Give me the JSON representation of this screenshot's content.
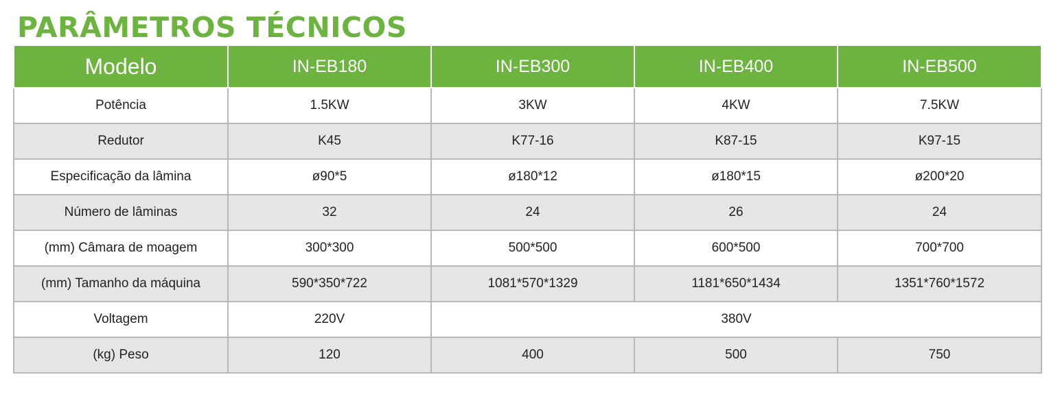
{
  "title": "PARÂMETROS TÉCNICOS",
  "colors": {
    "accent": "#6db33f",
    "row_alt": "#e6e6e6"
  },
  "header": [
    "Modelo",
    "IN-EB180",
    "IN-EB300",
    "IN-EB400",
    "IN-EB500"
  ],
  "rows": [
    {
      "label": "Potência",
      "values": [
        "1.5KW",
        "3KW",
        "4KW",
        "7.5KW"
      ]
    },
    {
      "label": "Redutor",
      "values": [
        "K45",
        "K77-16",
        "K87-15",
        "K97-15"
      ]
    },
    {
      "label": "Especificação da lâmina",
      "values": [
        "ø90*5",
        "ø180*12",
        "ø180*15",
        "ø200*20"
      ]
    },
    {
      "label": "Número de lâminas",
      "values": [
        "32",
        "24",
        "26",
        "24"
      ]
    },
    {
      "label": "(mm) Câmara de moagem",
      "values": [
        "300*300",
        "500*500",
        "600*500",
        "700*700"
      ]
    },
    {
      "label": "(mm) Tamanho da máquina",
      "values": [
        "590*350*722",
        "1081*570*1329",
        "1181*650*1434",
        "1351*760*1572"
      ]
    },
    {
      "label": "Voltagem",
      "values": [
        "220V",
        "380V"
      ]
    },
    {
      "label": "(kg) Peso",
      "values": [
        "120",
        "400",
        "500",
        "750"
      ]
    }
  ]
}
